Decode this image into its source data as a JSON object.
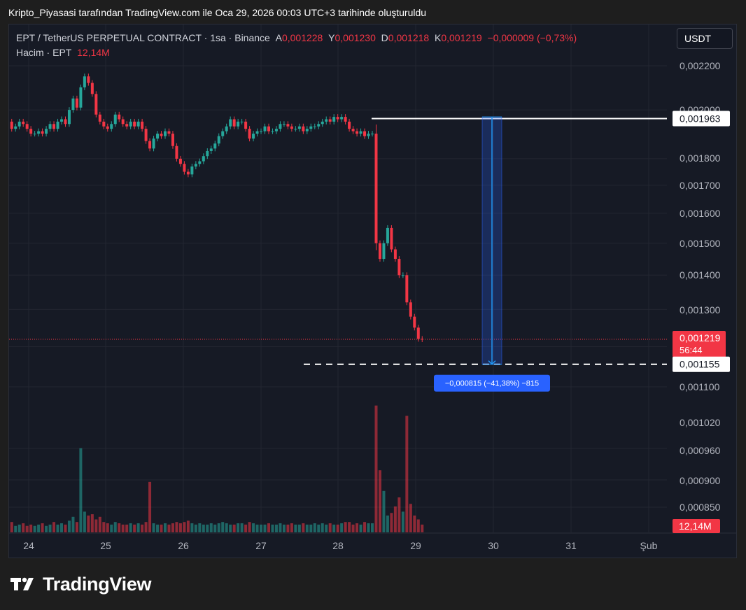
{
  "caption": "Kripto_Piyasasi tarafından TradingView.com ile Oca 29, 2026 00:03 UTC+3 tarihinde oluşturuldu",
  "legend": {
    "symbol": "EPT / TetherUS PERPETUAL CONTRACT · 1sa · Binance",
    "open_label": "A",
    "open": "0,001228",
    "high_label": "Y",
    "high": "0,001230",
    "low_label": "D",
    "low": "0,001218",
    "close_label": "K",
    "close": "0,001219",
    "change": "−0,000009 (−0,73%)",
    "volume_label": "Hacim · EPT",
    "volume": "12,14M"
  },
  "currency_button": "USDT",
  "brand": "TradingView",
  "colors": {
    "up": "#26a69a",
    "down": "#f23645",
    "measure": "#2962ff",
    "background": "#161a25"
  },
  "chart_data": {
    "type": "candlestick",
    "x_ticks": [
      "24",
      "25",
      "26",
      "27",
      "28",
      "29",
      "30",
      "31",
      "Şub"
    ],
    "y_ticks": [
      "0,002200",
      "0,002000",
      "0,001800",
      "0,001700",
      "0,001600",
      "0,001500",
      "0,001400",
      "0,001300",
      "0,001100",
      "0,001020",
      "0,000960",
      "0,000900",
      "0,000850"
    ],
    "y_tick_values": [
      0.0022,
      0.002,
      0.0018,
      0.0017,
      0.0016,
      0.0015,
      0.0014,
      0.0013,
      0.0011,
      0.00102,
      0.00096,
      0.0009,
      0.00085
    ],
    "scale": "log",
    "last_price_label": "0,001219",
    "countdown": "56:44",
    "volume_label": "12,14M",
    "high_line_label": "0,001963",
    "low_line_label": "0,001155",
    "high_line_value": 0.001963,
    "low_line_value": 0.001155,
    "measure": {
      "from": 0.00197,
      "to": 0.001155,
      "label": "−0,000815 (−41,38%) −815"
    },
    "start_price": 0.00195,
    "close_series": [
      0.00192,
      0.00193,
      0.00195,
      0.00194,
      0.00192,
      0.0019,
      0.0019,
      0.00191,
      0.0019,
      0.00192,
      0.00194,
      0.00192,
      0.00195,
      0.00196,
      0.00194,
      0.002,
      0.00205,
      0.00201,
      0.0021,
      0.00215,
      0.00212,
      0.00207,
      0.00198,
      0.00195,
      0.00193,
      0.00192,
      0.00194,
      0.00198,
      0.00196,
      0.00194,
      0.00193,
      0.00195,
      0.00193,
      0.00195,
      0.00192,
      0.00187,
      0.00184,
      0.00188,
      0.0019,
      0.00189,
      0.00191,
      0.0019,
      0.00185,
      0.0018,
      0.00178,
      0.00175,
      0.00174,
      0.00177,
      0.00178,
      0.00179,
      0.00181,
      0.00183,
      0.00184,
      0.00186,
      0.00189,
      0.00191,
      0.00193,
      0.00196,
      0.00193,
      0.00195,
      0.00195,
      0.00192,
      0.00188,
      0.0019,
      0.00191,
      0.00191,
      0.00193,
      0.00191,
      0.00191,
      0.00192,
      0.00194,
      0.00194,
      0.00193,
      0.00192,
      0.00192,
      0.00193,
      0.00191,
      0.00192,
      0.00193,
      0.00193,
      0.00194,
      0.00195,
      0.00196,
      0.00195,
      0.00197,
      0.00196,
      0.00197,
      0.00195,
      0.00192,
      0.00191,
      0.0019,
      0.00191,
      0.00189,
      0.0019,
      0.0019,
      0.0015,
      0.00145,
      0.0015,
      0.00155,
      0.00148,
      0.00145,
      0.0014,
      0.0014,
      0.00132,
      0.00128,
      0.00125,
      0.00122,
      0.001219
    ],
    "volume_series": [
      0.8,
      0.5,
      0.6,
      0.7,
      0.5,
      0.6,
      0.5,
      0.6,
      0.7,
      0.5,
      0.6,
      0.8,
      0.6,
      0.7,
      0.6,
      0.9,
      1.2,
      0.8,
      6.5,
      1.6,
      1.3,
      1.4,
      1.0,
      1.2,
      0.8,
      0.7,
      0.6,
      0.8,
      0.7,
      0.6,
      0.6,
      0.7,
      0.6,
      0.7,
      0.6,
      0.8,
      3.9,
      0.7,
      0.6,
      0.6,
      0.7,
      0.6,
      0.7,
      0.8,
      0.7,
      0.8,
      0.9,
      0.7,
      0.6,
      0.7,
      0.6,
      0.6,
      0.7,
      0.6,
      0.7,
      0.8,
      0.7,
      0.6,
      0.6,
      0.7,
      0.7,
      0.6,
      0.8,
      0.7,
      0.6,
      0.6,
      0.6,
      0.7,
      0.6,
      0.6,
      0.7,
      0.6,
      0.6,
      0.7,
      0.6,
      0.6,
      0.7,
      0.6,
      0.6,
      0.7,
      0.6,
      0.7,
      0.6,
      0.7,
      0.6,
      0.6,
      0.7,
      0.8,
      0.8,
      0.6,
      0.7,
      0.6,
      0.8,
      0.7,
      0.7,
      9.8,
      4.8,
      3.2,
      1.3,
      1.5,
      2.0,
      2.7,
      1.6,
      9.0,
      2.2,
      1.3,
      1.0,
      0.6
    ]
  }
}
